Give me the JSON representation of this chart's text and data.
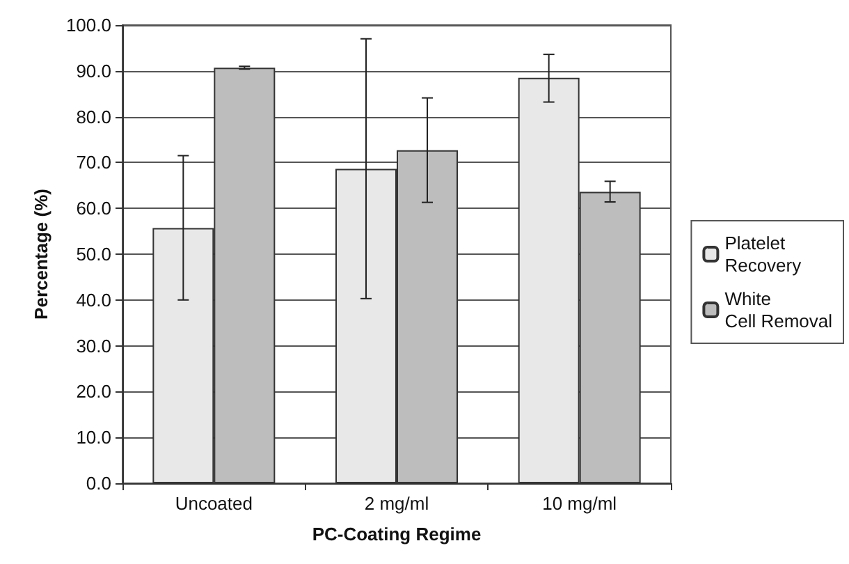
{
  "chart_data": {
    "type": "bar",
    "xlabel": "PC-Coating Regime",
    "ylabel": "Percentage (%)",
    "categories": [
      "Uncoated",
      "2 mg/ml",
      "10 mg/ml"
    ],
    "series": [
      {
        "name": "Platelet Recovery",
        "color": "#e8e8e8",
        "values": [
          55.7,
          68.6,
          88.5
        ],
        "errors": [
          [
            40.0,
            71.5
          ],
          [
            40.3,
            97.0
          ],
          [
            83.2,
            93.6
          ]
        ]
      },
      {
        "name": "White Cell Removal",
        "color": "#bdbdbd",
        "values": [
          90.7,
          72.7,
          63.6
        ],
        "errors": [
          [
            90.4,
            91.0
          ],
          [
            61.3,
            84.1
          ],
          [
            61.4,
            65.9
          ]
        ]
      }
    ],
    "ylim": [
      0,
      100
    ],
    "yticks": [
      {
        "value": 0,
        "label": "0.0"
      },
      {
        "value": 10,
        "label": "10.0"
      },
      {
        "value": 20,
        "label": "20.0"
      },
      {
        "value": 30,
        "label": "30.0"
      },
      {
        "value": 40,
        "label": "40.0"
      },
      {
        "value": 50,
        "label": "50.0"
      },
      {
        "value": 60,
        "label": "60.0"
      },
      {
        "value": 70,
        "label": "70.0"
      },
      {
        "value": 80,
        "label": "80.0"
      },
      {
        "value": 90,
        "label": "90.0"
      },
      {
        "value": 100,
        "label": "100.0"
      }
    ],
    "grid": "y",
    "legend": "right"
  }
}
